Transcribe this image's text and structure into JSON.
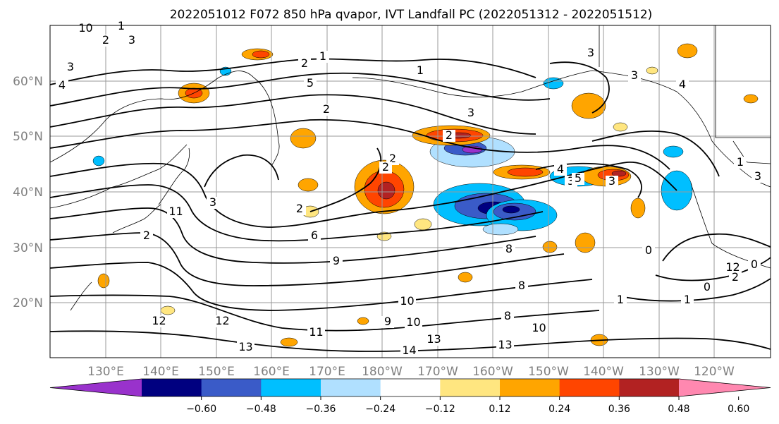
{
  "title": "2022051012 F072 850 hPa qvapor, IVT Landfall PC (2022051312 - 2022051512)",
  "map": {
    "lat_labels": [
      "60°N",
      "50°N",
      "40°N",
      "30°N",
      "20°N"
    ],
    "lon_labels": [
      "130°E",
      "140°E",
      "150°E",
      "160°E",
      "170°E",
      "180°W",
      "170°W",
      "160°W",
      "150°W",
      "140°W",
      "130°W",
      "120°W"
    ],
    "contour_labels": [
      "1",
      "1",
      "2",
      "3",
      "3",
      "4",
      "1",
      "2",
      "1",
      "2",
      "3",
      "3",
      "3",
      "2",
      "5",
      "2",
      "2",
      "4",
      "3",
      "3",
      "11",
      "3",
      "2",
      "6",
      "9",
      "8",
      "8",
      "10",
      "10",
      "9",
      "8",
      "10",
      "11",
      "12",
      "13",
      "13",
      "14",
      "13",
      "12",
      "0",
      "1",
      "2",
      "0",
      "1",
      "0",
      "1",
      "3",
      "4",
      "5",
      "2",
      "12",
      "10"
    ]
  },
  "colorbar": {
    "ticks": [
      "−0.60",
      "−0.48",
      "−0.36",
      "−0.24",
      "−0.12",
      "0.12",
      "0.24",
      "0.36",
      "0.48",
      "0.60"
    ],
    "colors": [
      "#9932cc",
      "#000080",
      "#3a5bc8",
      "#00bfff",
      "#b0e0ff",
      "#ffffff",
      "#ffe680",
      "#ffa500",
      "#ff4500",
      "#b22222",
      "#ff88b0"
    ]
  }
}
